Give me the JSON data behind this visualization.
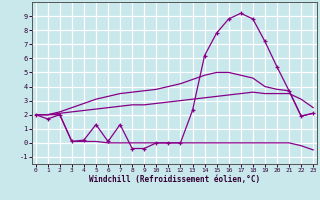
{
  "xlabel": "Windchill (Refroidissement éolien,°C)",
  "background_color": "#c8e8ec",
  "grid_color": "#b0d8dc",
  "line_color": "#880088",
  "x_values": [
    0,
    1,
    2,
    3,
    4,
    5,
    6,
    7,
    8,
    9,
    10,
    11,
    12,
    13,
    14,
    15,
    16,
    17,
    18,
    19,
    20,
    21,
    22,
    23
  ],
  "line1_y": [
    2.0,
    1.7,
    2.0,
    0.1,
    0.2,
    1.3,
    0.1,
    1.3,
    -0.4,
    -0.4,
    0.0,
    0.0,
    0.0,
    2.3,
    6.2,
    7.8,
    8.8,
    9.2,
    8.8,
    7.2,
    5.4,
    3.7,
    1.9,
    2.1
  ],
  "line2_y": [
    2.0,
    2.0,
    2.2,
    2.5,
    2.8,
    3.1,
    3.3,
    3.5,
    3.6,
    3.7,
    3.8,
    4.0,
    4.2,
    4.5,
    4.8,
    5.0,
    5.0,
    4.8,
    4.6,
    4.0,
    3.8,
    3.7,
    1.9,
    2.1
  ],
  "line3_y": [
    2.0,
    2.0,
    2.1,
    2.2,
    2.3,
    2.4,
    2.5,
    2.6,
    2.7,
    2.7,
    2.8,
    2.9,
    3.0,
    3.1,
    3.2,
    3.3,
    3.4,
    3.5,
    3.6,
    3.5,
    3.5,
    3.5,
    3.1,
    2.5
  ],
  "line4_y": [
    2.0,
    2.0,
    2.0,
    0.1,
    0.1,
    0.1,
    0.0,
    0.0,
    0.0,
    0.0,
    0.0,
    0.0,
    0.0,
    0.0,
    0.0,
    0.0,
    0.0,
    0.0,
    0.0,
    0.0,
    0.0,
    0.0,
    -0.2,
    -0.5
  ],
  "ylim": [
    -1.5,
    10.0
  ],
  "xlim": [
    -0.3,
    23.3
  ],
  "yticks": [
    -1,
    0,
    1,
    2,
    3,
    4,
    5,
    6,
    7,
    8,
    9
  ],
  "xticks": [
    0,
    1,
    2,
    3,
    4,
    5,
    6,
    7,
    8,
    9,
    10,
    11,
    12,
    13,
    14,
    15,
    16,
    17,
    18,
    19,
    20,
    21,
    22,
    23
  ]
}
